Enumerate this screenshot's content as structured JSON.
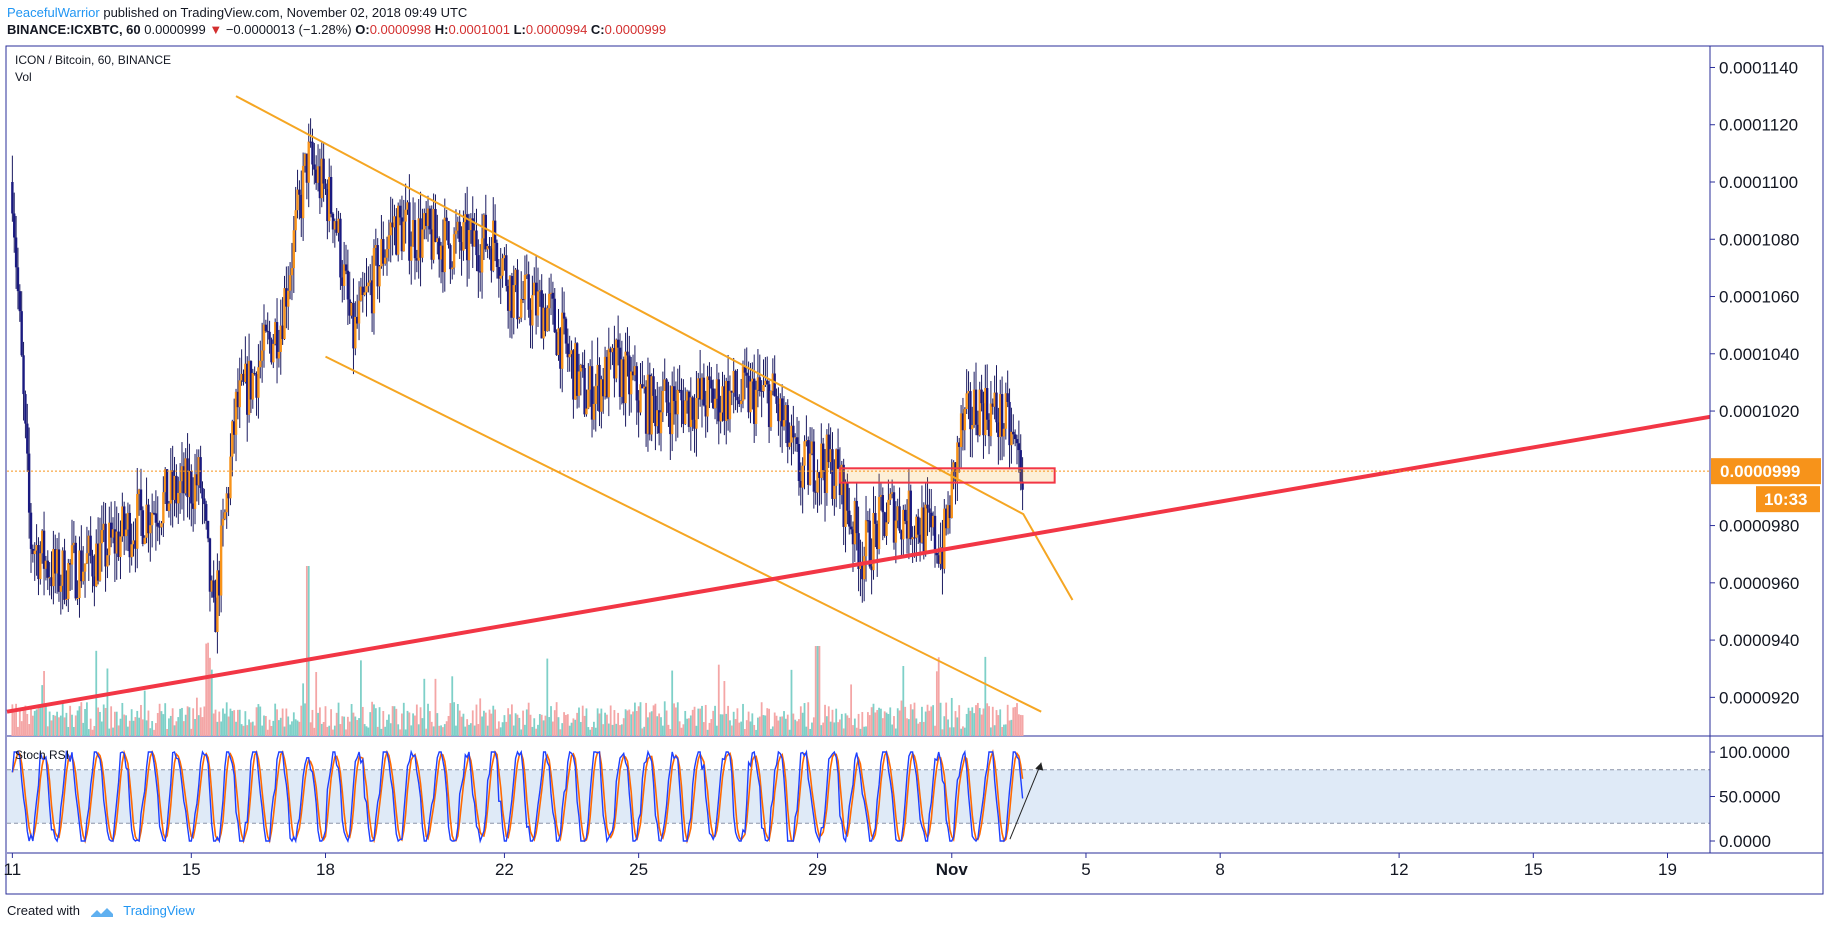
{
  "header": {
    "author": "PeacefulWarrior",
    "published": "published on TradingView.com, November 02, 2018 09:49 UTC",
    "symbol": "BINANCE:ICXBTC, 60",
    "last": "0.0000999",
    "arrow": "▼",
    "change": "−0.0000013 (−1.28%)",
    "o_label": "O:",
    "o_value": "0.0000998",
    "h_label": "H:",
    "h_value": "0.0001001",
    "l_label": "L:",
    "l_value": "0.0000994",
    "c_label": "C:",
    "c_value": "0.0000999"
  },
  "pane": {
    "title": "ICON / Bitcoin, 60, BINANCE",
    "vol_label": "Vol",
    "rsi_label": "Stoch RSI"
  },
  "footer": {
    "created_with": "Created with",
    "brand": "TradingView"
  },
  "colors": {
    "up": "#f7931a",
    "down": "#1a1a80",
    "trend": "#f5a623",
    "support": "#f23645",
    "vol_up": "#7ed0c8",
    "vol_down": "#f4a6a6",
    "rsi_k": "#1e40ff",
    "rsi_d": "#ff6a00",
    "band": "#dfeaf7"
  },
  "chart_data": {
    "type": "candlestick",
    "price_axis": {
      "ylim": [
        9.065e-05,
        0.00011475
      ],
      "ticks": [
        "0.0001140",
        "0.0001120",
        "0.0001100",
        "0.0001080",
        "0.0001060",
        "0.0001040",
        "0.0001020",
        "0.0000980",
        "0.0000960",
        "0.0000940",
        "0.0000920"
      ],
      "tick_values": [
        0.000114,
        0.000112,
        0.00011,
        0.000108,
        0.000106,
        0.000104,
        0.000102,
        9.8e-05,
        9.6e-05,
        9.4e-05,
        9.2e-05
      ],
      "last_price_label": "0.0000999",
      "last_price": 9.99e-05,
      "countdown": "10:33"
    },
    "rsi_axis": {
      "ylim": [
        0,
        100
      ],
      "ticks": [
        "100.0000",
        "50.0000",
        "0.0000"
      ],
      "tick_values": [
        100,
        50,
        0
      ],
      "bands": [
        20,
        80
      ]
    },
    "x_axis": {
      "xlim": [
        11,
        19.9
      ],
      "labels": [
        "11",
        "15",
        "18",
        "22",
        "25",
        "29",
        "Nov",
        "5",
        "8",
        "12",
        "15",
        "19"
      ],
      "positions": [
        11,
        15,
        18,
        22,
        25,
        29,
        32,
        35,
        38,
        42,
        45,
        48
      ],
      "note": "positions are day numbers from Oct 11 (Nov 1 = 32)"
    },
    "xlim": [
      10.88,
      48.95
    ],
    "key_points": {
      "x": [
        11.0,
        11.4,
        12.0,
        13.0,
        14.0,
        15.2,
        15.5,
        16.0,
        17.0,
        17.6,
        18.2,
        18.6,
        19.5,
        20.3,
        21.0,
        21.8,
        22.2,
        23.0,
        23.8,
        24.5,
        25.2,
        26.0,
        27.0,
        28.0,
        28.6,
        29.0,
        29.4,
        30.0,
        30.6,
        31.2,
        31.8,
        32.2,
        32.6,
        33.2,
        33.6
      ],
      "y": [
        0.00011,
        9.75e-05,
        9.62e-05,
        9.7e-05,
        9.85e-05,
        9.96e-05,
        9.45e-05,
        0.000102,
        0.0001052,
        0.0001108,
        0.000109,
        0.0001045,
        0.0001085,
        0.000108,
        0.0001078,
        0.000108,
        0.000106,
        0.0001055,
        0.0001025,
        0.0001035,
        0.0001022,
        0.0001023,
        0.0001025,
        0.0001025,
        9.98e-05,
        0.0001003,
        9.99e-05,
        9.7e-05,
        9.85e-05,
        9.82e-05,
        9.72e-05,
        0.0001012,
        0.0001023,
        0.0001016,
        9.99e-05
      ]
    },
    "annotations": {
      "upper_trend": [
        [
          16.0,
          0.000113
        ],
        [
          33.6,
          9.84e-05
        ],
        [
          34.7,
          9.54e-05
        ]
      ],
      "lower_trend": [
        [
          18.0,
          0.0001039
        ],
        [
          34.0,
          9.15e-05
        ]
      ],
      "support": [
        [
          10.88,
          9.15e-05
        ],
        [
          48.95,
          0.0001018
        ]
      ],
      "box": [
        [
          29.5,
          0.0001
        ],
        [
          34.3,
          9.95e-05
        ]
      ],
      "arrow": [
        [
          33.3,
          2
        ],
        [
          34.0,
          88
        ]
      ]
    }
  }
}
